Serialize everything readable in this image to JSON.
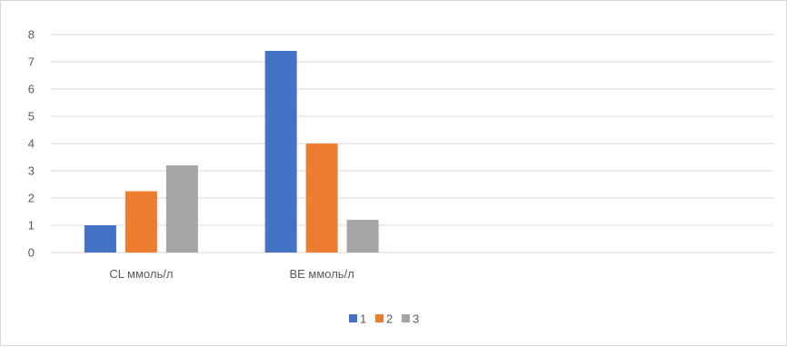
{
  "chart_data": {
    "type": "bar",
    "title": "",
    "xlabel": "",
    "ylabel": "",
    "categories": [
      "CL ммоль/л",
      "BE ммоль/л",
      "",
      ""
    ],
    "series": [
      {
        "name": "1",
        "color": "#4472c4",
        "values": [
          1.0,
          7.4,
          null,
          null
        ]
      },
      {
        "name": "2",
        "color": "#ed7d31",
        "values": [
          2.25,
          4.0,
          null,
          null
        ]
      },
      {
        "name": "3",
        "color": "#a5a5a5",
        "values": [
          3.2,
          1.2,
          null,
          null
        ]
      }
    ],
    "ylim": [
      0,
      8
    ],
    "yticks": [
      0,
      1,
      2,
      3,
      4,
      5,
      6,
      7,
      8
    ],
    "grid": true,
    "legend_position": "bottom"
  }
}
